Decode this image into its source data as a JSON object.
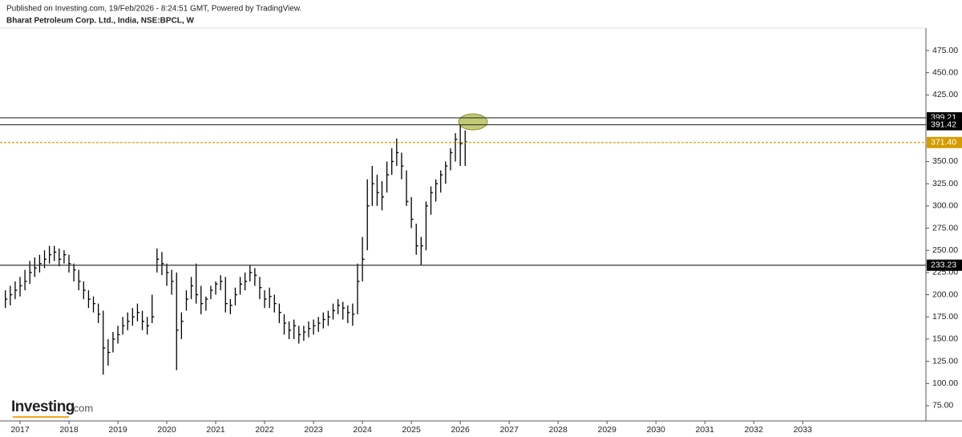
{
  "header": {
    "published": "Published on Investing.com, 19/Feb/2026 - 8:24:51 GMT, Powered by TradingView.",
    "symbol": "Bharat Petroleum Corp. Ltd., India, NSE:BPCL, W"
  },
  "logo": {
    "name": "Investing",
    "suffix": ".com"
  },
  "chart_data": {
    "type": "ohlc",
    "color": "#000000",
    "x": [
      2016.7,
      2016.8,
      2016.9,
      2017.0,
      2017.1,
      2017.2,
      2017.3,
      2017.4,
      2017.5,
      2017.6,
      2017.7,
      2017.8,
      2017.9,
      2018.0,
      2018.1,
      2018.2,
      2018.3,
      2018.4,
      2018.5,
      2018.6,
      2018.7,
      2018.8,
      2018.9,
      2019.0,
      2019.1,
      2019.2,
      2019.3,
      2019.4,
      2019.5,
      2019.6,
      2019.7,
      2019.8,
      2019.9,
      2020.0,
      2020.1,
      2020.2,
      2020.3,
      2020.4,
      2020.5,
      2020.6,
      2020.7,
      2020.8,
      2020.9,
      2021.0,
      2021.1,
      2021.2,
      2021.3,
      2021.4,
      2021.5,
      2021.6,
      2021.7,
      2021.8,
      2021.9,
      2022.0,
      2022.1,
      2022.2,
      2022.3,
      2022.4,
      2022.5,
      2022.6,
      2022.7,
      2022.8,
      2022.9,
      2023.0,
      2023.1,
      2023.2,
      2023.3,
      2023.4,
      2023.5,
      2023.6,
      2023.7,
      2023.8,
      2023.9,
      2024.0,
      2024.1,
      2024.2,
      2024.3,
      2024.4,
      2024.5,
      2024.6,
      2024.7,
      2024.8,
      2024.9,
      2025.0,
      2025.1,
      2025.2,
      2025.3,
      2025.4,
      2025.5,
      2025.6,
      2025.7,
      2025.8,
      2025.9,
      2026.0,
      2026.1
    ],
    "high": [
      205,
      210,
      215,
      220,
      228,
      238,
      242,
      245,
      250,
      255,
      255,
      252,
      250,
      245,
      235,
      228,
      215,
      205,
      198,
      190,
      182,
      150,
      158,
      165,
      175,
      180,
      185,
      190,
      182,
      175,
      200,
      252,
      248,
      235,
      228,
      225,
      180,
      205,
      220,
      235,
      210,
      198,
      210,
      215,
      222,
      220,
      195,
      208,
      220,
      225,
      233,
      230,
      220,
      205,
      208,
      200,
      190,
      178,
      170,
      172,
      165,
      165,
      170,
      172,
      175,
      180,
      182,
      190,
      195,
      192,
      188,
      190,
      235,
      265,
      330,
      345,
      335,
      328,
      350,
      365,
      376,
      360,
      340,
      310,
      280,
      265,
      305,
      322,
      330,
      340,
      350,
      365,
      382,
      391,
      385
    ],
    "low": [
      185,
      188,
      195,
      198,
      205,
      212,
      220,
      225,
      230,
      235,
      238,
      232,
      235,
      225,
      215,
      205,
      195,
      185,
      180,
      168,
      110,
      120,
      135,
      145,
      155,
      160,
      165,
      170,
      160,
      155,
      168,
      225,
      222,
      210,
      200,
      115,
      150,
      182,
      195,
      190,
      178,
      182,
      195,
      200,
      205,
      180,
      178,
      188,
      200,
      205,
      215,
      210,
      195,
      185,
      185,
      180,
      168,
      155,
      150,
      150,
      145,
      148,
      152,
      155,
      158,
      162,
      165,
      172,
      178,
      172,
      168,
      165,
      178,
      215,
      250,
      300,
      300,
      295,
      315,
      335,
      345,
      330,
      300,
      275,
      245,
      233,
      250,
      290,
      305,
      315,
      325,
      340,
      350,
      345,
      345
    ],
    "close": [
      195,
      200,
      205,
      210,
      215,
      225,
      230,
      235,
      240,
      245,
      248,
      240,
      245,
      235,
      228,
      215,
      205,
      195,
      190,
      178,
      140,
      135,
      150,
      155,
      165,
      170,
      175,
      180,
      170,
      165,
      175,
      240,
      235,
      225,
      215,
      160,
      170,
      195,
      210,
      200,
      190,
      195,
      205,
      212,
      215,
      190,
      188,
      200,
      212,
      215,
      225,
      222,
      208,
      195,
      198,
      190,
      180,
      168,
      160,
      165,
      155,
      158,
      162,
      165,
      168,
      172,
      175,
      182,
      188,
      185,
      180,
      178,
      215,
      240,
      300,
      325,
      315,
      310,
      335,
      350,
      360,
      345,
      305,
      285,
      255,
      255,
      300,
      315,
      325,
      335,
      345,
      360,
      375,
      370,
      372
    ],
    "xlim": [
      2016.59,
      2035.52
    ],
    "xticks": [
      2017,
      2018,
      2019,
      2020,
      2021,
      2022,
      2023,
      2024,
      2025,
      2026,
      2027,
      2028,
      2029,
      2030,
      2031,
      2032,
      2033
    ],
    "ylim": [
      57.8,
      500.3
    ],
    "yticks": [
      {
        "value": 75,
        "label": "75.00"
      },
      {
        "value": 100,
        "label": "100.00"
      },
      {
        "value": 125,
        "label": "125.00"
      },
      {
        "value": 150,
        "label": "150.00"
      },
      {
        "value": 175,
        "label": "175.00"
      },
      {
        "value": 200,
        "label": "200.00"
      },
      {
        "value": 225,
        "label": "225.00"
      },
      {
        "value": 250,
        "label": "250.00"
      },
      {
        "value": 275,
        "label": "275.00"
      },
      {
        "value": 300,
        "label": "300.00"
      },
      {
        "value": 325,
        "label": "325.00"
      },
      {
        "value": 350,
        "label": "350.00"
      },
      {
        "value": 425,
        "label": "425.00"
      },
      {
        "value": 450,
        "label": "450.00"
      },
      {
        "value": 475,
        "label": "475.00"
      }
    ],
    "levels": [
      {
        "value": 399.21,
        "color": "#333333"
      },
      {
        "value": 391.42,
        "color": "#333333"
      },
      {
        "value": 371.4,
        "label": "371.40",
        "color": "#d39c00",
        "dashed": true
      },
      {
        "value": 233.23,
        "color": "#333333"
      }
    ]
  }
}
